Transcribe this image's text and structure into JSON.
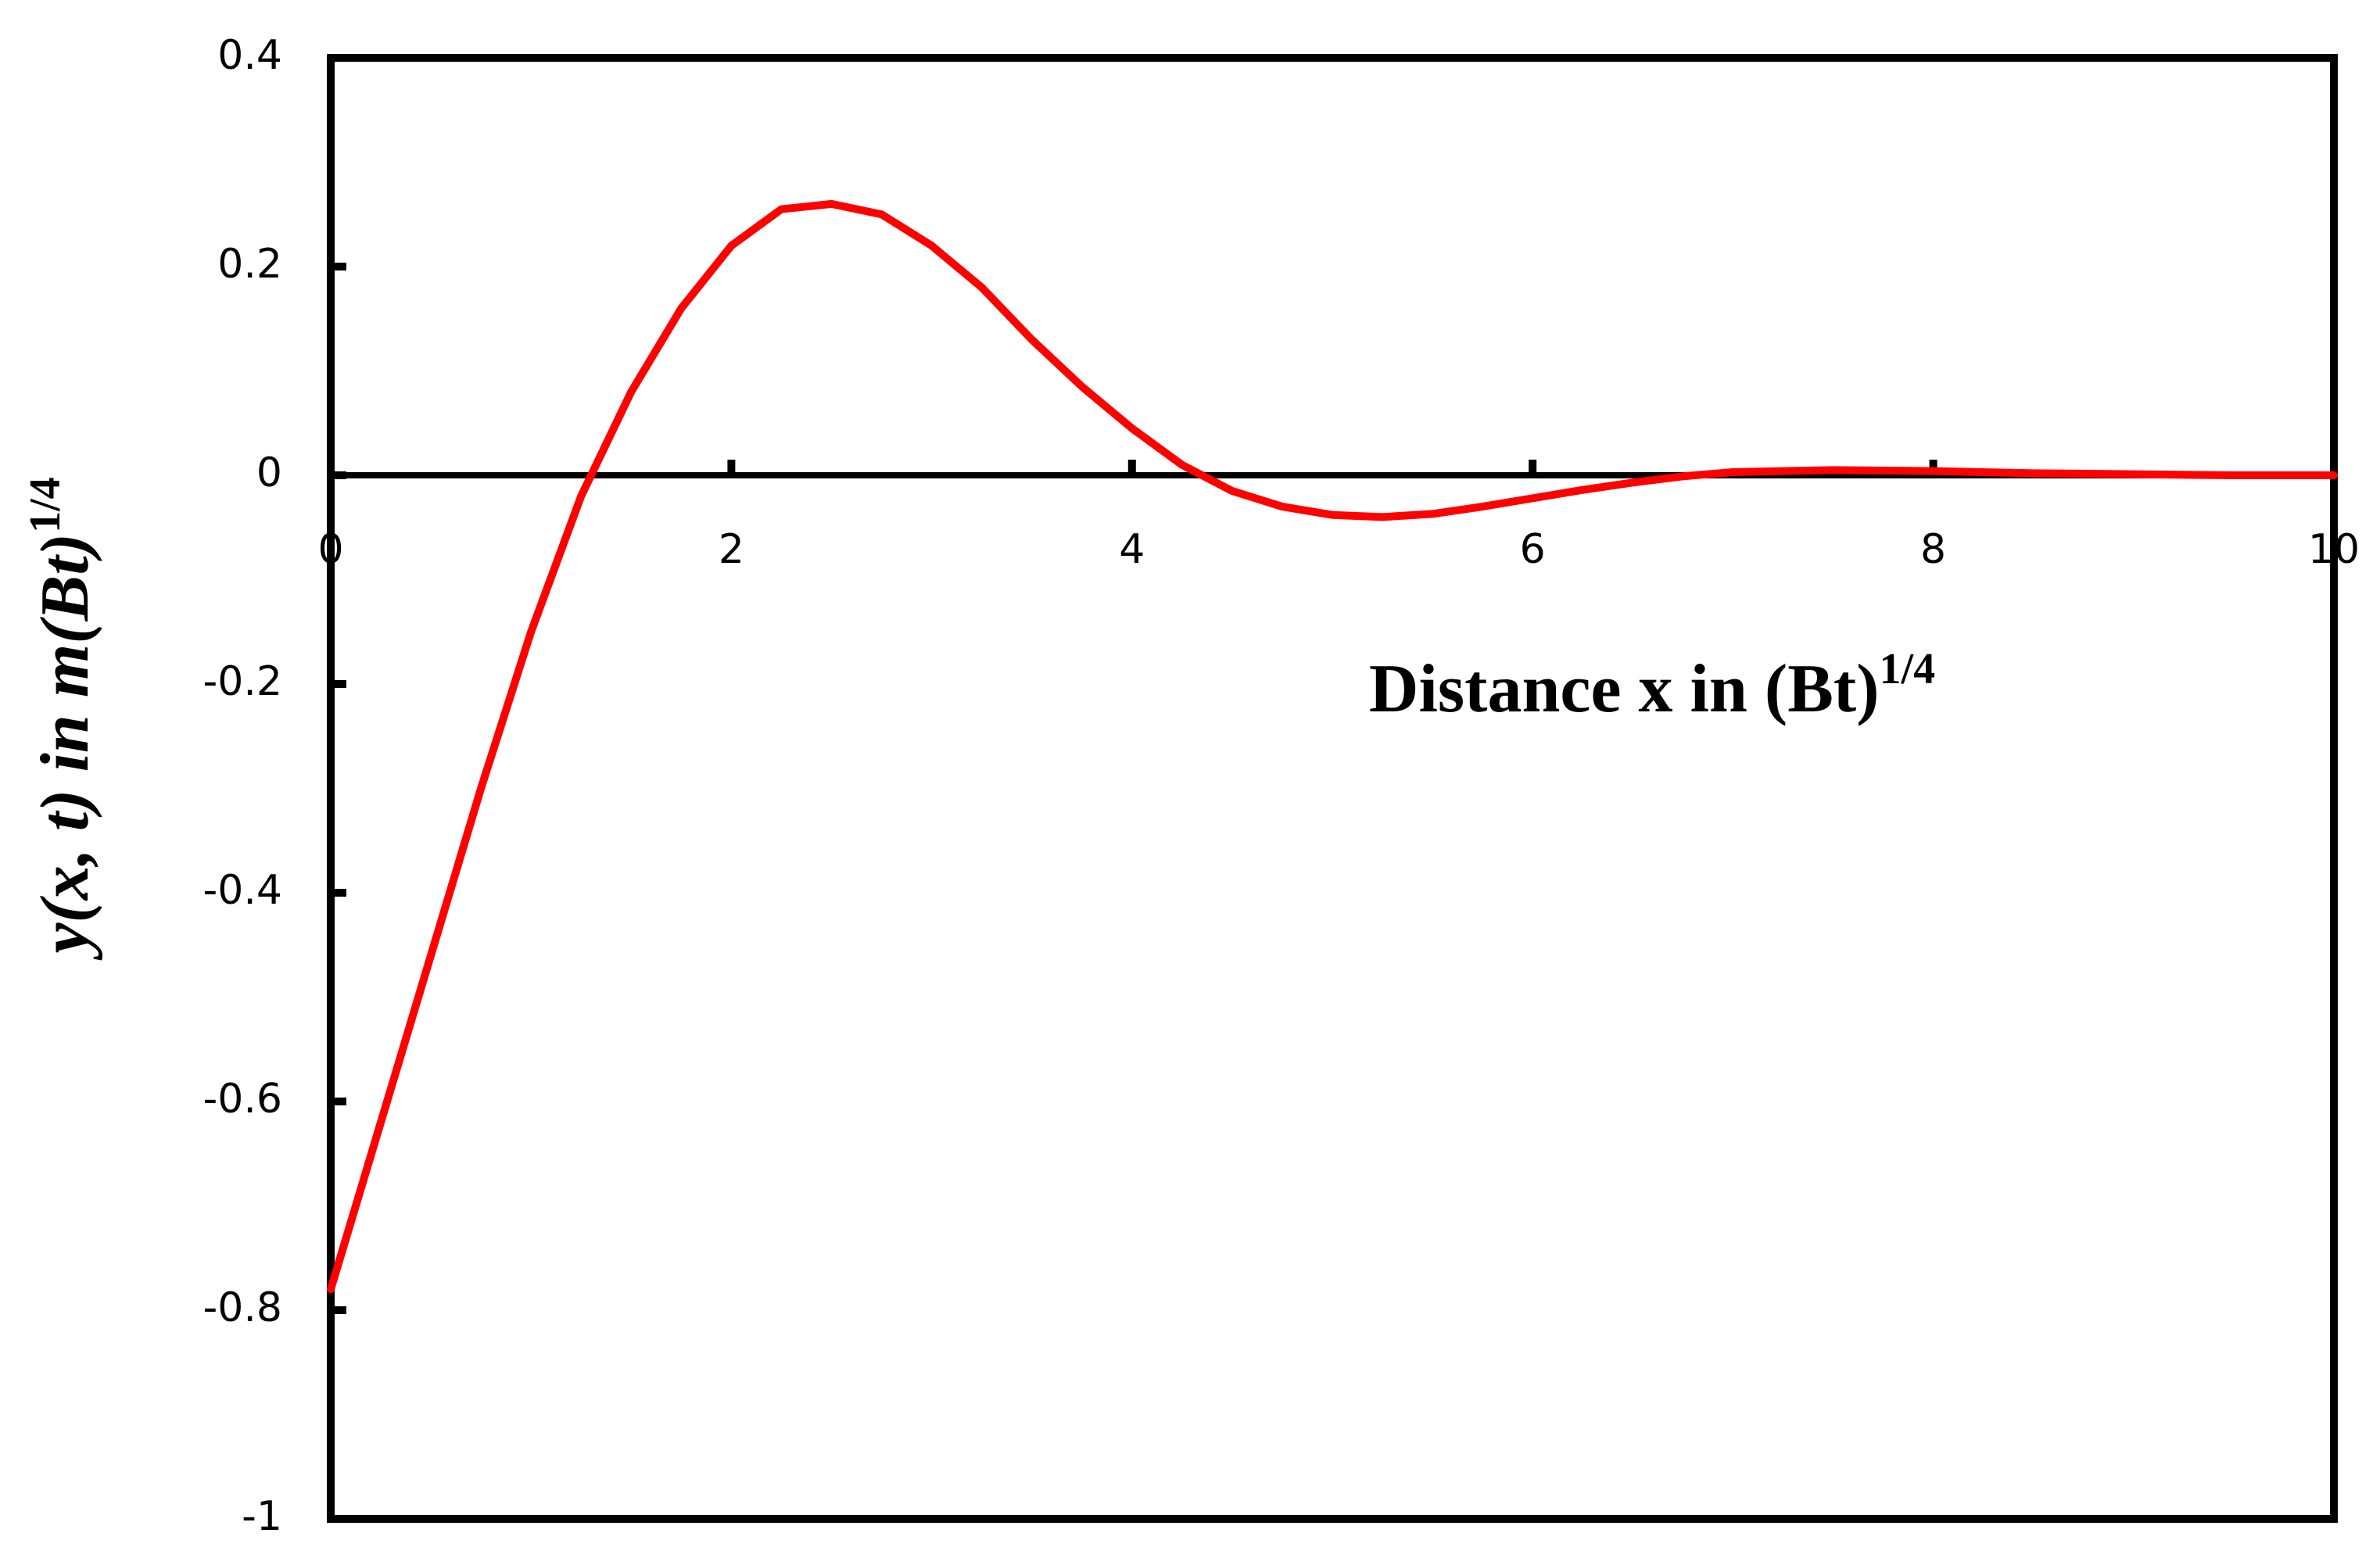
{
  "chart_data": {
    "type": "line",
    "xlabel": {
      "text": "Distance x in (Bt)",
      "sup": "1/4"
    },
    "ylabel": {
      "text": "y(x, t) in m(Bt)",
      "sup": "1/4"
    },
    "x": [
      0,
      0.25,
      0.5,
      0.75,
      1.0,
      1.25,
      1.5,
      1.75,
      2.0,
      2.25,
      2.5,
      2.75,
      3.0,
      3.25,
      3.5,
      3.75,
      4.0,
      4.25,
      4.5,
      4.75,
      5.0,
      5.25,
      5.5,
      5.75,
      6.0,
      6.25,
      6.5,
      6.75,
      7.0,
      7.5,
      8.0,
      8.5,
      9.0,
      9.5,
      10
    ],
    "series": [
      {
        "color": "#ff0000",
        "values": [
          -0.78,
          -0.62,
          -0.46,
          -0.3,
          -0.15,
          -0.02,
          0.08,
          0.16,
          0.22,
          0.255,
          0.26,
          0.25,
          0.22,
          0.18,
          0.13,
          0.085,
          0.045,
          0.01,
          -0.015,
          -0.03,
          -0.038,
          -0.04,
          -0.037,
          -0.03,
          -0.022,
          -0.014,
          -0.007,
          -0.001,
          0.003,
          0.005,
          0.004,
          0.002,
          0.001,
          0,
          0
        ]
      }
    ],
    "xlim": [
      0,
      10
    ],
    "xticks": [
      0,
      2,
      4,
      6,
      8,
      10
    ],
    "ylim": [
      -1,
      0.4
    ],
    "yticks": [
      -1,
      -0.8,
      -0.6,
      -0.4,
      -0.2,
      0,
      0.2,
      0.4
    ],
    "grid": false
  }
}
